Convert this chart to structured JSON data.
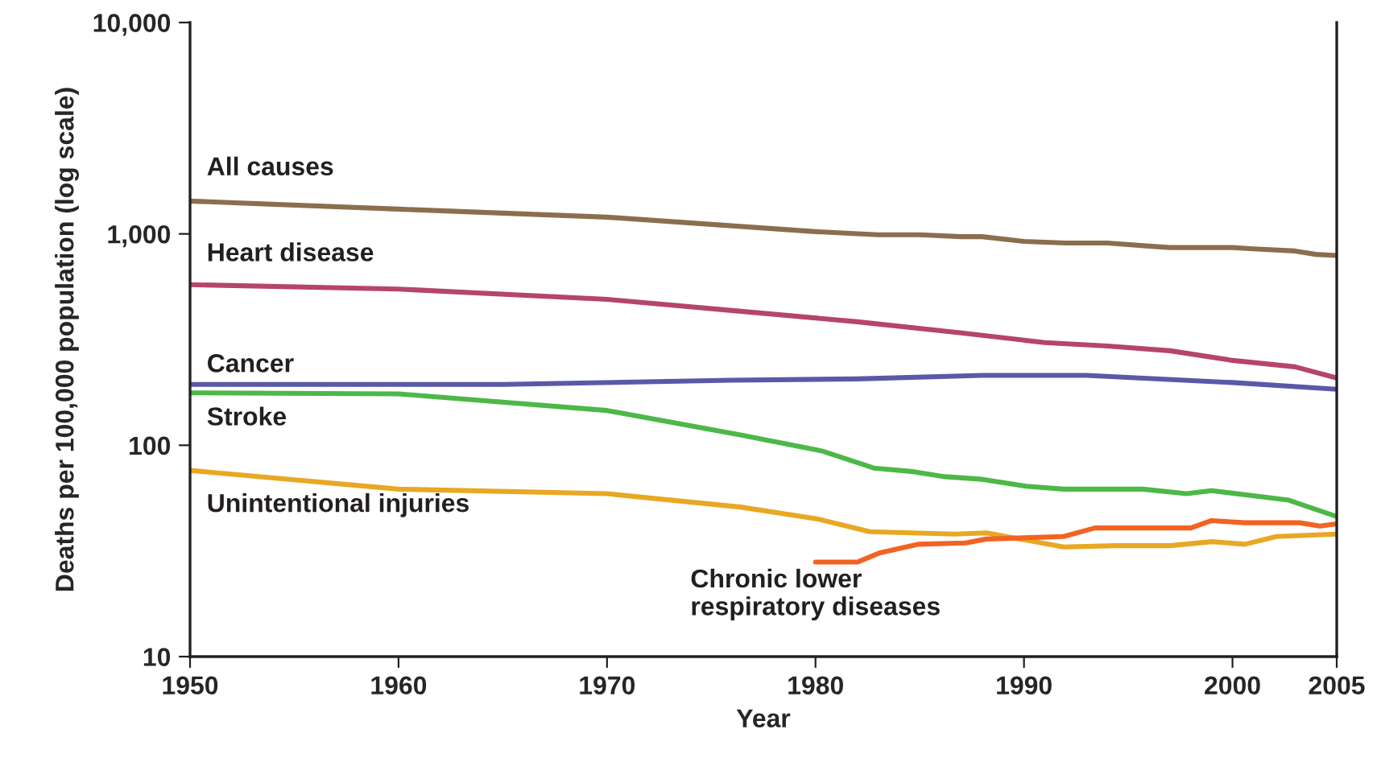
{
  "chart_data": {
    "type": "line",
    "xlabel": "Year",
    "ylabel": "Deaths per 100,000 population (log scale)",
    "log": "y",
    "grid": false,
    "legend": false,
    "marker": "none",
    "line_style": "solid",
    "xlim": [
      1950,
      2005
    ],
    "xticks": [
      1950,
      1960,
      1970,
      1980,
      1990,
      2000,
      2005
    ],
    "ylim": [
      10,
      10000
    ],
    "yticks": [
      {
        "value": 10,
        "label": "10"
      },
      {
        "value": 100,
        "label": "100"
      },
      {
        "value": 1000,
        "label": "1,000"
      },
      {
        "value": 10000,
        "label": "10,000"
      }
    ],
    "series": [
      {
        "name": "All causes",
        "color": "#8b6e4e",
        "x": [
          1950,
          1960,
          1970,
          1980,
          1983,
          1985,
          1987,
          1988,
          1990,
          1992,
          1994,
          1996,
          1997,
          2000,
          2001,
          2003,
          2004,
          2005
        ],
        "values": [
          1430,
          1310,
          1200,
          1025,
          990,
          990,
          970,
          970,
          922,
          905,
          905,
          875,
          862,
          862,
          850,
          830,
          800,
          790
        ]
      },
      {
        "name": "Heart disease",
        "color": "#b5446e",
        "x": [
          1950,
          1960,
          1970,
          1976,
          1982,
          1987,
          1991,
          1994,
          1997,
          2000,
          2003,
          2005
        ],
        "values": [
          575,
          548,
          490,
          434,
          384,
          340,
          306,
          295,
          280,
          252,
          235,
          208
        ]
      },
      {
        "name": "Cancer",
        "color": "#5a59a8",
        "x": [
          1950,
          1965,
          1976,
          1982,
          1988,
          1993,
          2000,
          2005
        ],
        "values": [
          194,
          194,
          203,
          206,
          214,
          214,
          198,
          184
        ]
      },
      {
        "name": "Stroke",
        "color": "#4cb848",
        "x": [
          1950,
          1960,
          1970,
          1976.4,
          1980.3,
          1982.8,
          1984.7,
          1986.2,
          1988,
          1990.1,
          1991.9,
          1995.7,
          1997.8,
          1999,
          2002.7,
          2005
        ],
        "values": [
          177,
          175,
          146,
          112,
          94,
          78,
          75,
          71,
          69,
          64,
          62,
          62,
          59,
          61,
          55,
          46
        ]
      },
      {
        "name": "Unintentional injuries",
        "color": "#e8a823",
        "x": [
          1950,
          1960,
          1970,
          1976.4,
          1980,
          1982.6,
          1986.7,
          1988.2,
          1991.9,
          1994.4,
          1997,
          1999,
          2000.6,
          2002.1,
          2005
        ],
        "values": [
          76,
          62,
          59,
          51,
          45,
          39,
          38,
          38.5,
          33,
          33.5,
          33.5,
          35,
          34,
          37,
          38
        ]
      },
      {
        "name": "Chronic lower\nrespiratory diseases",
        "color": "#f26322",
        "x": [
          1980,
          1982,
          1983.1,
          1984.9,
          1987.2,
          1988.2,
          1991.9,
          1993.4,
          1998,
          1999,
          2000.6,
          2003.2,
          2004.2,
          2005
        ],
        "values": [
          28,
          28,
          31,
          34,
          34.5,
          36,
          37,
          40.6,
          40.6,
          44,
          43,
          43,
          41.5,
          42.5
        ]
      }
    ]
  }
}
